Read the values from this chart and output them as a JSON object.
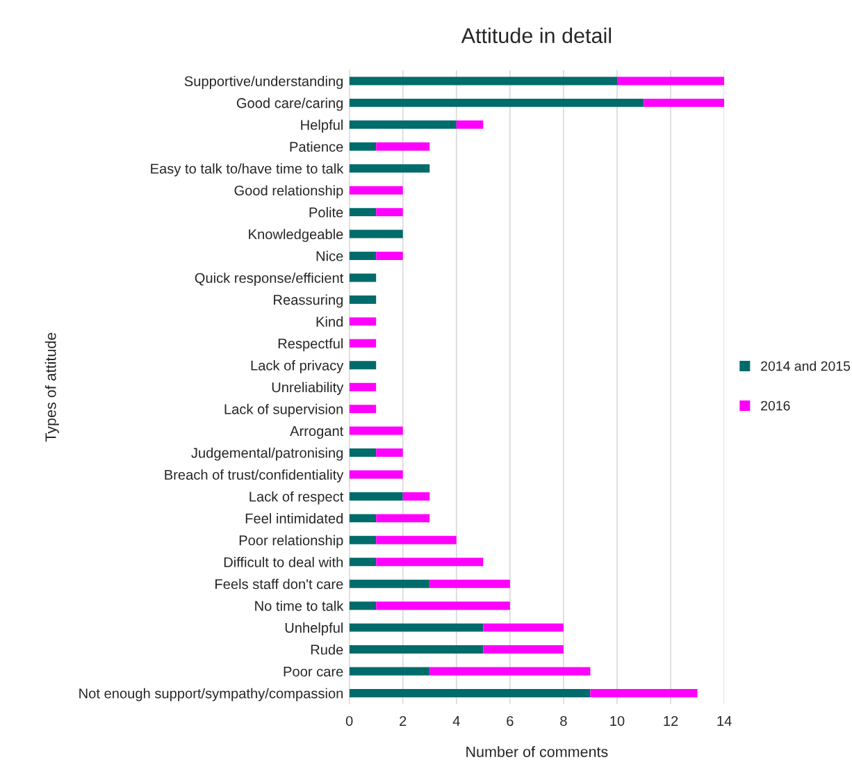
{
  "chart_data": {
    "type": "bar",
    "orientation": "horizontal",
    "stacked": true,
    "title": "Attitude in detail",
    "xlabel": "Number of comments",
    "ylabel": "Types of attitude",
    "categories": [
      "Supportive/understanding",
      "Good care/caring",
      "Helpful",
      "Patience",
      "Easy to talk to/have time to talk",
      "Good relationship",
      "Polite",
      "Knowledgeable",
      "Nice",
      "Quick response/efficient",
      "Reassuring",
      "Kind",
      "Respectful",
      "Lack of privacy",
      "Unreliability",
      "Lack of supervision",
      "Arrogant",
      "Judgemental/patronising",
      "Breach of trust/confidentiality",
      "Lack of respect",
      "Feel intimidated",
      "Poor relationship",
      "Difficult to deal with",
      "Feels staff don't care",
      "No time to talk",
      "Unhelpful",
      "Rude",
      "Poor care",
      "Not enough support/sympathy/compassion"
    ],
    "series": [
      {
        "name": "2014 and 2015",
        "color": "#006b6b",
        "values": [
          10,
          11,
          4,
          1,
          3,
          0,
          1,
          2,
          1,
          1,
          1,
          0,
          0,
          1,
          0,
          0,
          0,
          1,
          0,
          2,
          1,
          1,
          1,
          3,
          1,
          5,
          5,
          3,
          9
        ]
      },
      {
        "name": "2016",
        "color": "#ff00ff",
        "values": [
          4,
          3,
          1,
          2,
          0,
          2,
          1,
          0,
          1,
          0,
          0,
          1,
          1,
          0,
          1,
          1,
          2,
          1,
          2,
          1,
          2,
          3,
          4,
          3,
          5,
          3,
          3,
          6,
          4
        ]
      }
    ],
    "xlim": [
      0,
      14
    ],
    "xticks": [
      0,
      2,
      4,
      6,
      8,
      10,
      12,
      14
    ],
    "grid": "x",
    "legend": "right"
  }
}
